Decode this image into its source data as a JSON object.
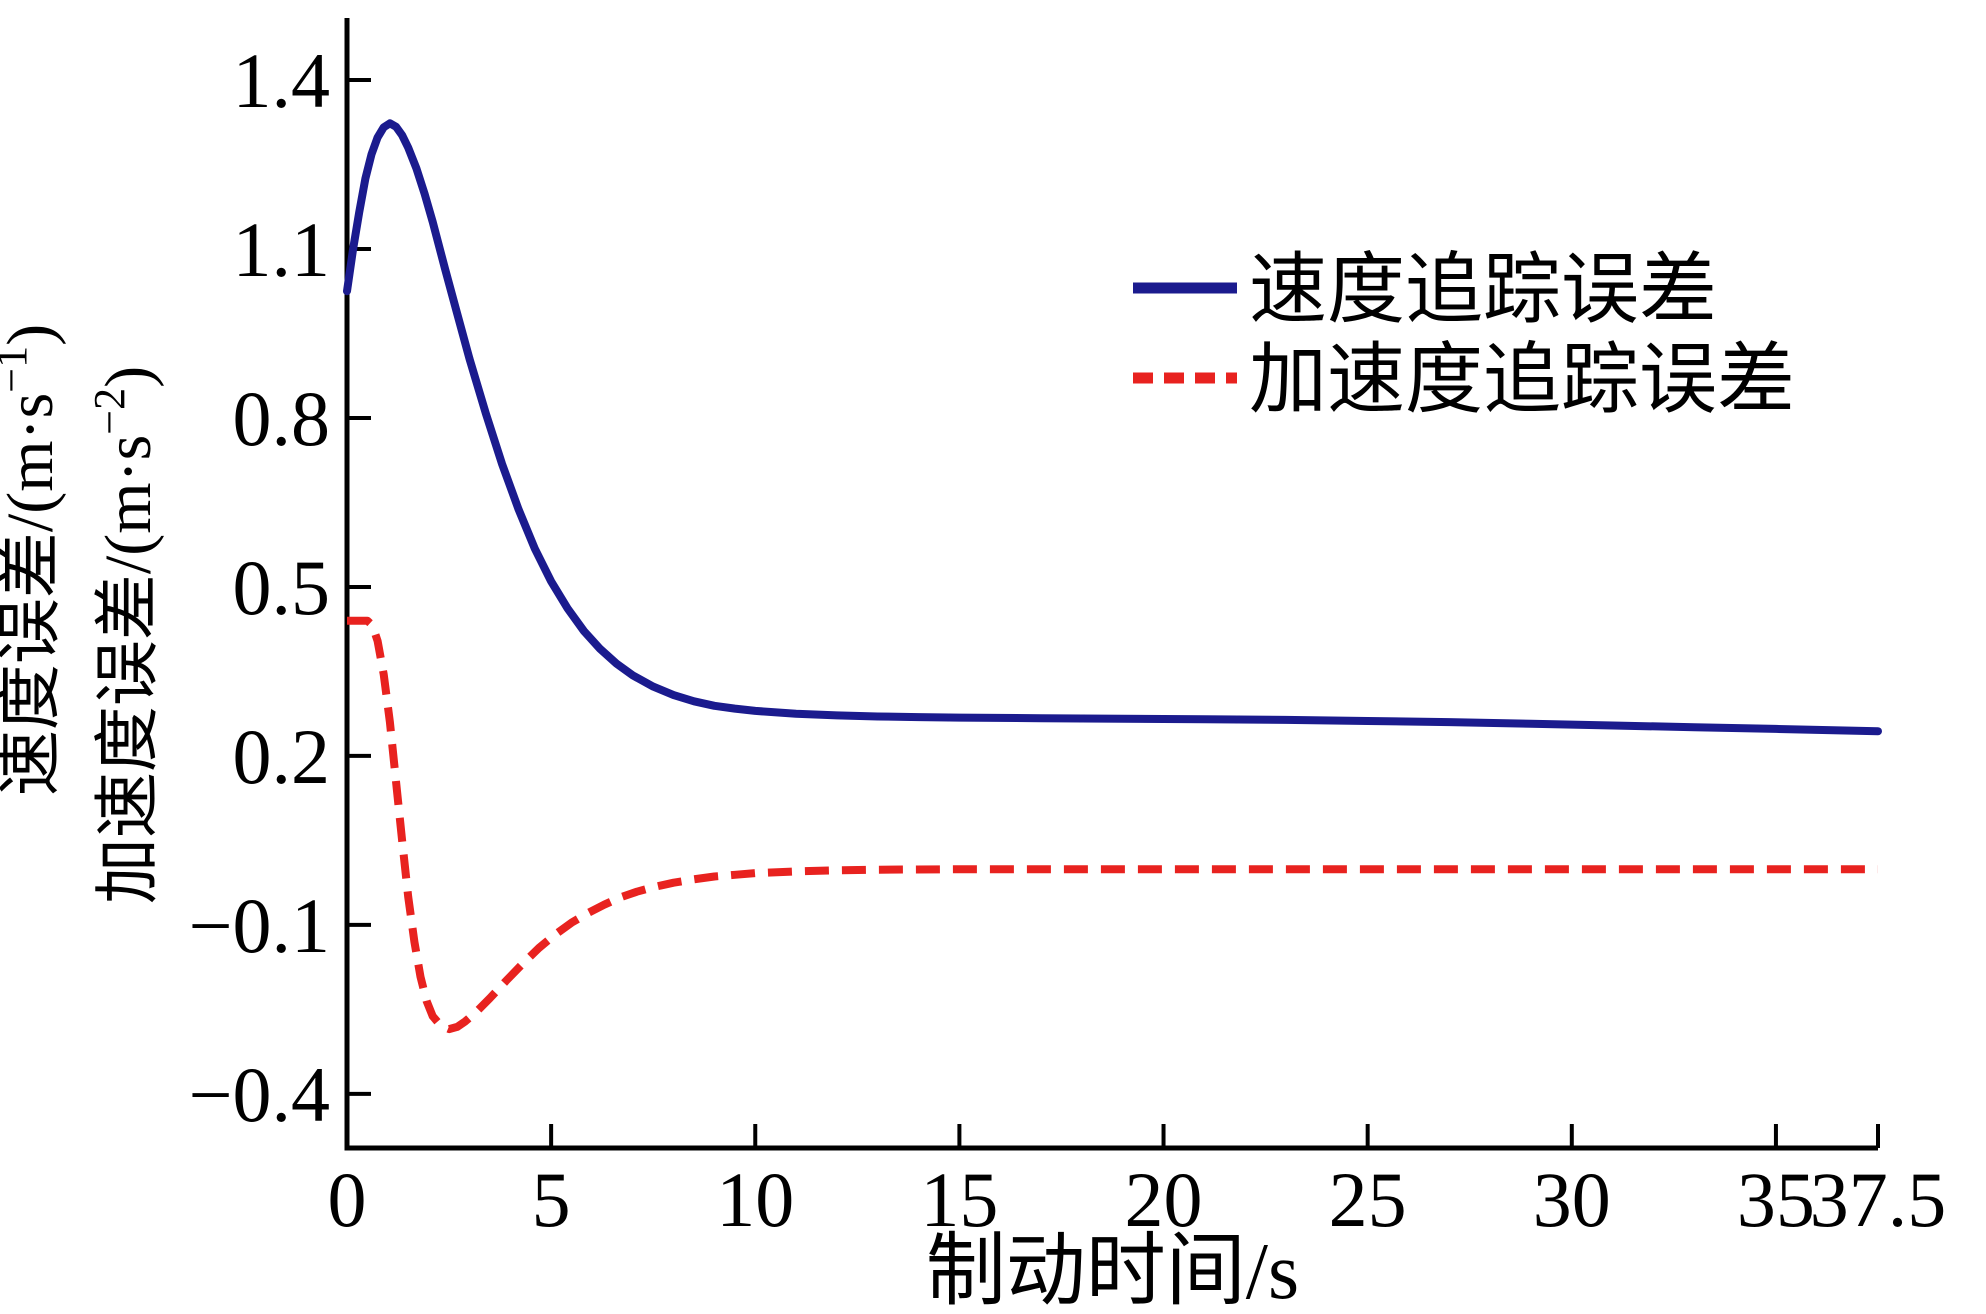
{
  "figure": {
    "background": "#ffffff",
    "axis_color": "#000000"
  },
  "chart_data": {
    "type": "line",
    "title": "",
    "xlabel": "制动时间/s",
    "ylabel_lines": [
      {
        "prefix": "速度误差/(m·s",
        "sup": "−1",
        "suffix": ")"
      },
      {
        "prefix": "加速度误差/(m·s",
        "sup": "−2",
        "suffix": ")"
      }
    ],
    "xlim": [
      0,
      37.5
    ],
    "ylim": [
      -0.496,
      1.51
    ],
    "grid": false,
    "x_ticks": [
      0,
      5,
      10,
      15,
      20,
      25,
      30,
      35,
      37.5
    ],
    "x_tick_labels": [
      "0",
      "5",
      "10",
      "15",
      "20",
      "25",
      "30",
      "35",
      "37.5"
    ],
    "y_ticks": [
      1.4,
      1.1,
      0.8,
      0.5,
      0.2,
      -0.1,
      -0.4
    ],
    "y_tick_labels": [
      "1.4",
      "1.1",
      "0.8",
      "0.5",
      "0.2",
      "−0.1",
      "−0.4"
    ],
    "legend": {
      "position": "upper-right-inside",
      "border": false,
      "entries": [
        {
          "label": "速度追踪误差",
          "color": "#1b1b8e",
          "style": "solid"
        },
        {
          "label": "加速度追踪误差",
          "color": "#e8221f",
          "style": "dashed"
        }
      ]
    },
    "series": [
      {
        "name": "速度追踪误差",
        "color": "#1b1b8e",
        "style": "solid",
        "points": [
          [
            0,
            1.025
          ],
          [
            0.15,
            1.1
          ],
          [
            0.3,
            1.165
          ],
          [
            0.45,
            1.225
          ],
          [
            0.6,
            1.268
          ],
          [
            0.75,
            1.298
          ],
          [
            0.9,
            1.316
          ],
          [
            1.05,
            1.323
          ],
          [
            1.2,
            1.317
          ],
          [
            1.35,
            1.302
          ],
          [
            1.5,
            1.28
          ],
          [
            1.7,
            1.243
          ],
          [
            1.9,
            1.198
          ],
          [
            2.1,
            1.148
          ],
          [
            2.4,
            1.065
          ],
          [
            2.7,
            0.985
          ],
          [
            3.0,
            0.905
          ],
          [
            3.4,
            0.808
          ],
          [
            3.8,
            0.718
          ],
          [
            4.2,
            0.638
          ],
          [
            4.6,
            0.568
          ],
          [
            5.0,
            0.51
          ],
          [
            5.4,
            0.462
          ],
          [
            5.8,
            0.422
          ],
          [
            6.2,
            0.39
          ],
          [
            6.6,
            0.364
          ],
          [
            7.0,
            0.343
          ],
          [
            7.5,
            0.323
          ],
          [
            8.0,
            0.308
          ],
          [
            8.5,
            0.297
          ],
          [
            9.0,
            0.289
          ],
          [
            9.5,
            0.284
          ],
          [
            10,
            0.28
          ],
          [
            11,
            0.275
          ],
          [
            12,
            0.272
          ],
          [
            13,
            0.27
          ],
          [
            14,
            0.269
          ],
          [
            15,
            0.268
          ],
          [
            17,
            0.267
          ],
          [
            19,
            0.266
          ],
          [
            21,
            0.265
          ],
          [
            23,
            0.264
          ],
          [
            25,
            0.262
          ],
          [
            27,
            0.26
          ],
          [
            29,
            0.257
          ],
          [
            31,
            0.254
          ],
          [
            33,
            0.251
          ],
          [
            35,
            0.248
          ],
          [
            37.5,
            0.244
          ]
        ]
      },
      {
        "name": "加速度追踪误差",
        "color": "#e8221f",
        "style": "dashed",
        "points": [
          [
            0,
            0.44
          ],
          [
            0.5,
            0.44
          ],
          [
            0.62,
            0.432
          ],
          [
            0.75,
            0.404
          ],
          [
            0.9,
            0.345
          ],
          [
            1.05,
            0.26
          ],
          [
            1.2,
            0.155
          ],
          [
            1.35,
            0.05
          ],
          [
            1.5,
            -0.05
          ],
          [
            1.65,
            -0.13
          ],
          [
            1.8,
            -0.192
          ],
          [
            1.95,
            -0.235
          ],
          [
            2.1,
            -0.262
          ],
          [
            2.3,
            -0.279
          ],
          [
            2.5,
            -0.285
          ],
          [
            2.7,
            -0.281
          ],
          [
            2.9,
            -0.271
          ],
          [
            3.2,
            -0.252
          ],
          [
            3.5,
            -0.23
          ],
          [
            3.9,
            -0.199
          ],
          [
            4.3,
            -0.169
          ],
          [
            4.7,
            -0.141
          ],
          [
            5.1,
            -0.117
          ],
          [
            5.5,
            -0.096
          ],
          [
            5.9,
            -0.079
          ],
          [
            6.3,
            -0.064
          ],
          [
            6.7,
            -0.051
          ],
          [
            7.1,
            -0.041
          ],
          [
            7.5,
            -0.033
          ],
          [
            8.0,
            -0.025
          ],
          [
            8.5,
            -0.019
          ],
          [
            9.0,
            -0.014
          ],
          [
            9.5,
            -0.011
          ],
          [
            10,
            -0.008
          ],
          [
            11,
            -0.005
          ],
          [
            12,
            -0.003
          ],
          [
            13,
            -0.002
          ],
          [
            15,
            -0.001
          ],
          [
            18,
            -0.001
          ],
          [
            22,
            -0.001
          ],
          [
            26,
            -0.001
          ],
          [
            30,
            -0.001
          ],
          [
            34,
            -0.001
          ],
          [
            37.5,
            -0.001
          ]
        ]
      }
    ]
  }
}
